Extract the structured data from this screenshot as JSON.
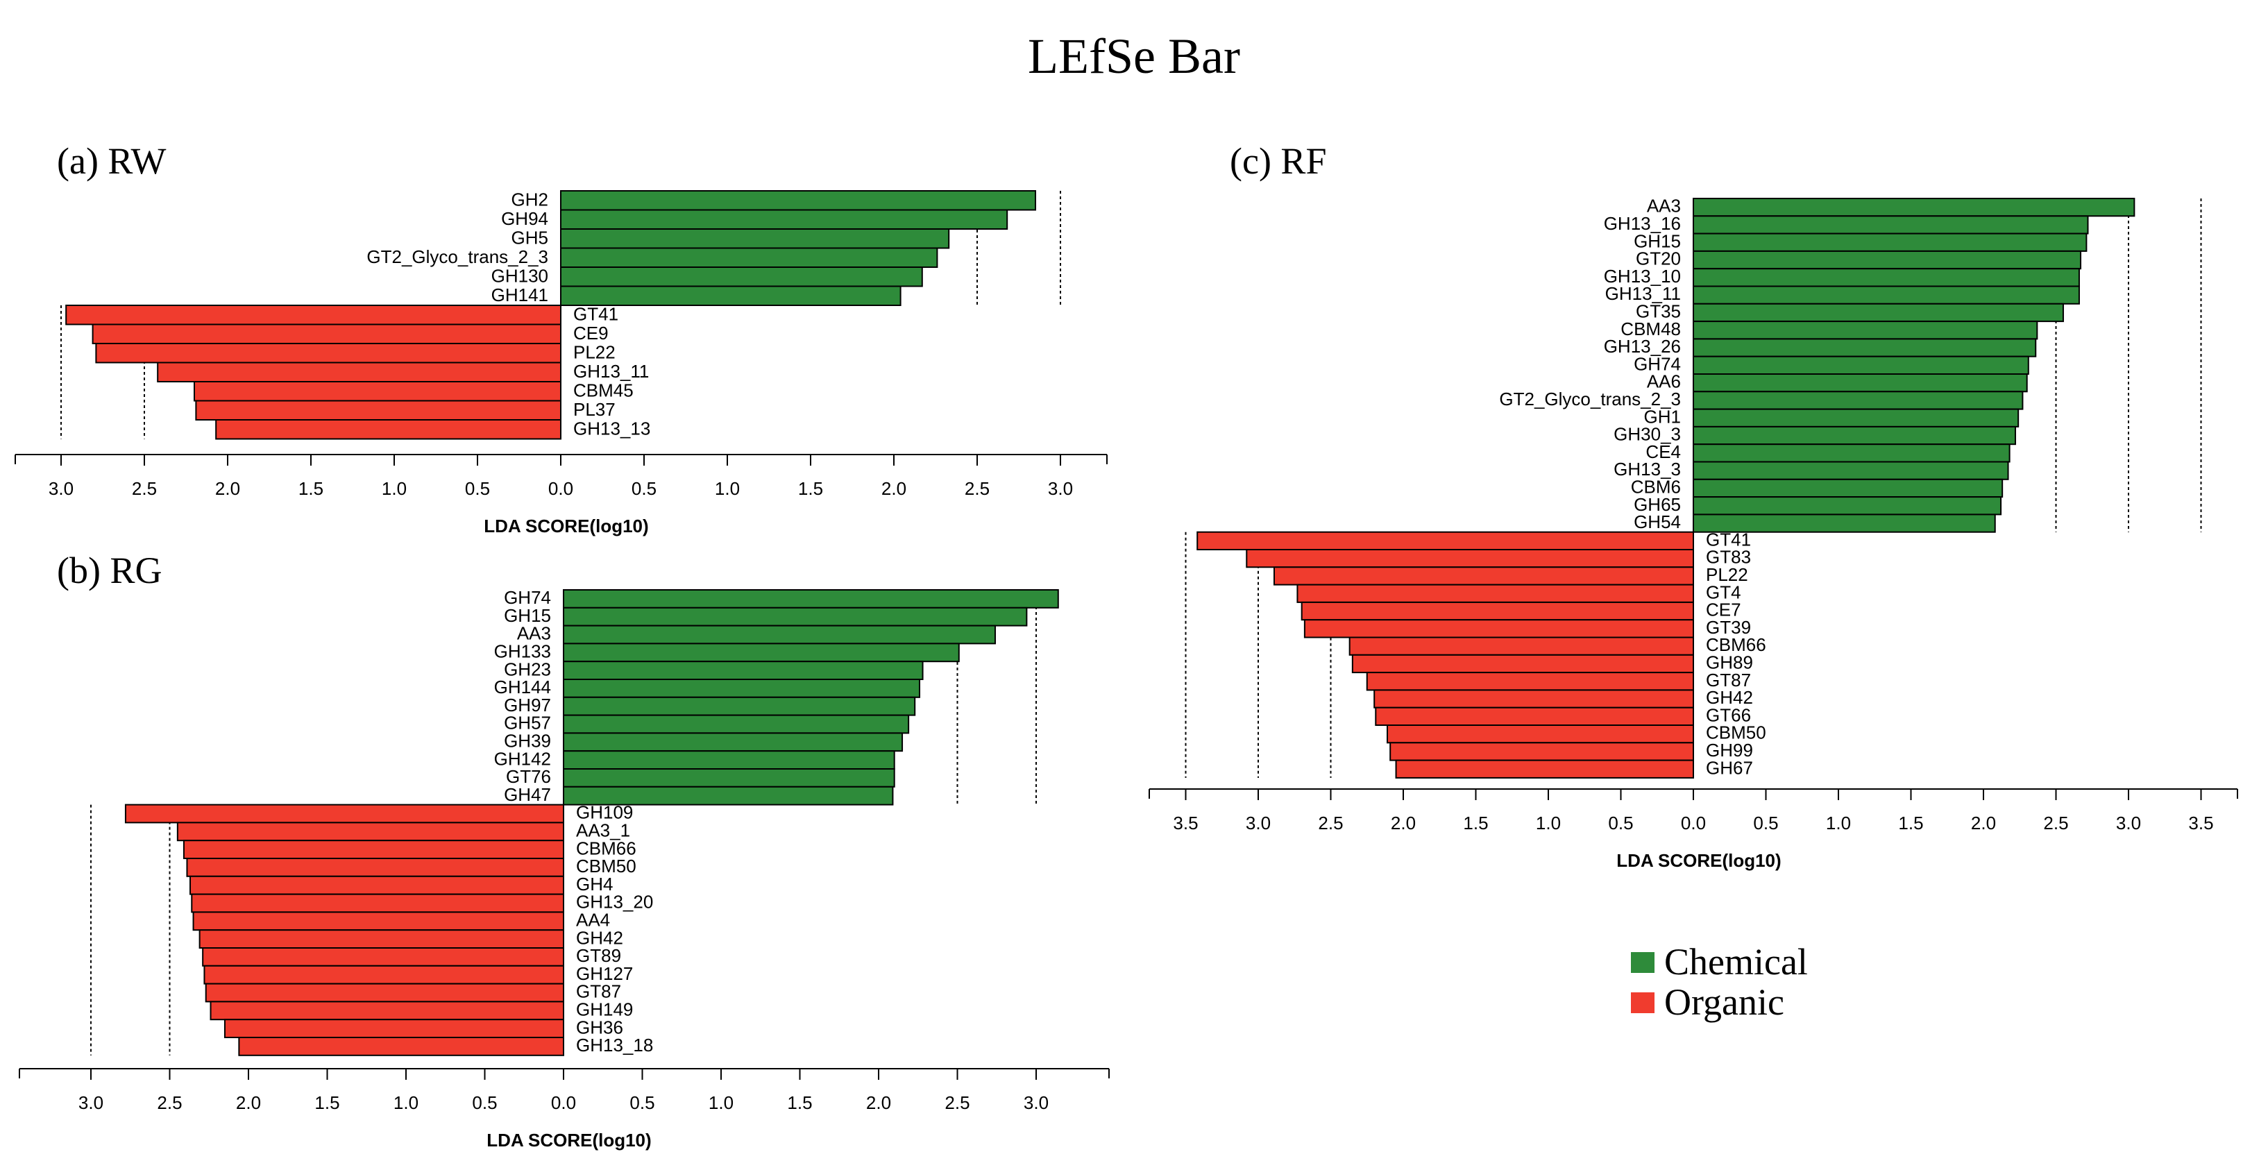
{
  "title": "LEfSe Bar",
  "colors": {
    "chemical": "#2e8b3a",
    "organic": "#f03c2e",
    "axis": "#000000"
  },
  "legend": [
    {
      "label": "Chemical",
      "color": "#2e8b3a"
    },
    {
      "label": "Organic",
      "color": "#f03c2e"
    }
  ],
  "chart_data": [
    {
      "type": "bar",
      "panel": "(a) RW",
      "xlabel": "LDA SCORE(log10)",
      "xlim_left": 3.3,
      "xlim_right": 3.3,
      "ticks_left": [
        3.0,
        2.5,
        2.0,
        1.5,
        1.0,
        0.5
      ],
      "ticks_right": [
        0.0,
        0.5,
        1.0,
        1.5,
        2.0,
        2.5,
        3.0
      ],
      "guides_left": [
        3.0,
        2.5
      ],
      "guides_right": [
        2.5,
        3.0
      ],
      "chemical": [
        {
          "label": "GH2",
          "value": 2.85
        },
        {
          "label": "GH94",
          "value": 2.68
        },
        {
          "label": "GH5",
          "value": 2.33
        },
        {
          "label": "GT2_Glyco_trans_2_3",
          "value": 2.26
        },
        {
          "label": "GH130",
          "value": 2.17
        },
        {
          "label": "GH141",
          "value": 2.04
        }
      ],
      "organic": [
        {
          "label": "GT41",
          "value": 2.97
        },
        {
          "label": "CE9",
          "value": 2.81
        },
        {
          "label": "PL22",
          "value": 2.79
        },
        {
          "label": "GH13_11",
          "value": 2.42
        },
        {
          "label": "CBM45",
          "value": 2.2
        },
        {
          "label": "PL37",
          "value": 2.19
        },
        {
          "label": "GH13_13",
          "value": 2.07
        }
      ]
    },
    {
      "type": "bar",
      "panel": "(b) RG",
      "xlabel": "LDA SCORE(log10)",
      "xlim_left": 3.45,
      "xlim_right": 3.45,
      "ticks_left": [
        3.0,
        2.5,
        2.0,
        1.5,
        1.0,
        0.5
      ],
      "ticks_right": [
        0.0,
        0.5,
        1.0,
        1.5,
        2.0,
        2.5,
        3.0
      ],
      "guides_left": [
        3.0,
        2.5
      ],
      "guides_right": [
        2.5,
        3.0
      ],
      "chemical": [
        {
          "label": "GH74",
          "value": 3.14
        },
        {
          "label": "GH15",
          "value": 2.94
        },
        {
          "label": "AA3",
          "value": 2.74
        },
        {
          "label": "GH133",
          "value": 2.51
        },
        {
          "label": "GH23",
          "value": 2.28
        },
        {
          "label": "GH144",
          "value": 2.26
        },
        {
          "label": "GH97",
          "value": 2.23
        },
        {
          "label": "GH57",
          "value": 2.19
        },
        {
          "label": "GH39",
          "value": 2.15
        },
        {
          "label": "GH142",
          "value": 2.1
        },
        {
          "label": "GT76",
          "value": 2.1
        },
        {
          "label": "GH47",
          "value": 2.09
        }
      ],
      "organic": [
        {
          "label": "GH109",
          "value": 2.78
        },
        {
          "label": "AA3_1",
          "value": 2.45
        },
        {
          "label": "CBM66",
          "value": 2.41
        },
        {
          "label": "CBM50",
          "value": 2.39
        },
        {
          "label": "GH4",
          "value": 2.37
        },
        {
          "label": "GH13_20",
          "value": 2.36
        },
        {
          "label": "AA4",
          "value": 2.35
        },
        {
          "label": "GH42",
          "value": 2.31
        },
        {
          "label": "GT89",
          "value": 2.29
        },
        {
          "label": "GH127",
          "value": 2.28
        },
        {
          "label": "GT87",
          "value": 2.27
        },
        {
          "label": "GH149",
          "value": 2.24
        },
        {
          "label": "GH36",
          "value": 2.15
        },
        {
          "label": "GH13_18",
          "value": 2.06
        }
      ]
    },
    {
      "type": "bar",
      "panel": "(c) RF",
      "xlabel": "LDA SCORE(log10)",
      "xlim_left": 3.75,
      "xlim_right": 3.75,
      "ticks_left": [
        3.5,
        3.0,
        2.5,
        2.0,
        1.5,
        1.0,
        0.5
      ],
      "ticks_right": [
        0.0,
        0.5,
        1.0,
        1.5,
        2.0,
        2.5,
        3.0,
        3.5
      ],
      "guides_left": [
        3.5,
        3.0,
        2.5
      ],
      "guides_right": [
        2.5,
        3.0,
        3.5
      ],
      "chemical": [
        {
          "label": "AA3",
          "value": 3.04
        },
        {
          "label": "GH13_16",
          "value": 2.72
        },
        {
          "label": "GH15",
          "value": 2.71
        },
        {
          "label": "GT20",
          "value": 2.67
        },
        {
          "label": "GH13_10",
          "value": 2.66
        },
        {
          "label": "GH13_11",
          "value": 2.66
        },
        {
          "label": "GT35",
          "value": 2.55
        },
        {
          "label": "CBM48",
          "value": 2.37
        },
        {
          "label": "GH13_26",
          "value": 2.36
        },
        {
          "label": "GH74",
          "value": 2.31
        },
        {
          "label": "AA6",
          "value": 2.3
        },
        {
          "label": "GT2_Glyco_trans_2_3",
          "value": 2.27
        },
        {
          "label": "GH1",
          "value": 2.24
        },
        {
          "label": "GH30_3",
          "value": 2.22
        },
        {
          "label": "CE4",
          "value": 2.18
        },
        {
          "label": "GH13_3",
          "value": 2.17
        },
        {
          "label": "CBM6",
          "value": 2.13
        },
        {
          "label": "GH65",
          "value": 2.12
        },
        {
          "label": "GH54",
          "value": 2.08
        }
      ],
      "organic": [
        {
          "label": "GT41",
          "value": 3.42
        },
        {
          "label": "GT83",
          "value": 3.08
        },
        {
          "label": "PL22",
          "value": 2.89
        },
        {
          "label": "GT4",
          "value": 2.73
        },
        {
          "label": "CE7",
          "value": 2.7
        },
        {
          "label": "GT39",
          "value": 2.68
        },
        {
          "label": "CBM66",
          "value": 2.37
        },
        {
          "label": "GH89",
          "value": 2.35
        },
        {
          "label": "GT87",
          "value": 2.25
        },
        {
          "label": "GH42",
          "value": 2.2
        },
        {
          "label": "GT66",
          "value": 2.19
        },
        {
          "label": "CBM50",
          "value": 2.11
        },
        {
          "label": "GH99",
          "value": 2.09
        },
        {
          "label": "GH67",
          "value": 2.05
        }
      ]
    }
  ]
}
